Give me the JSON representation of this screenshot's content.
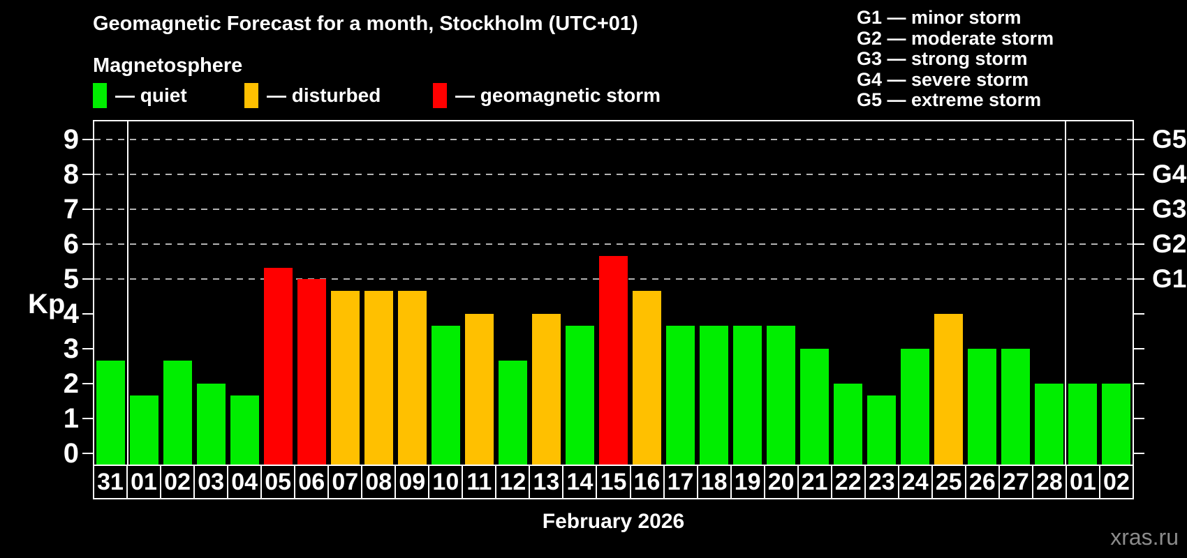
{
  "title": "Geomagnetic Forecast for a month, Stockholm (UTC+01)",
  "subtitle": "Magnetosphere",
  "legend": [
    {
      "label": "— quiet",
      "status": "quiet"
    },
    {
      "label": "— disturbed",
      "status": "disturbed"
    },
    {
      "label": "— geomagnetic storm",
      "status": "storm"
    }
  ],
  "storm_legend": [
    "G1 — minor storm",
    "G2 — moderate storm",
    "G3 — strong storm",
    "G4 — severe storm",
    "G5 — extreme storm"
  ],
  "watermark": "xras.ru",
  "chart_data": {
    "type": "bar",
    "title": "Geomagnetic Forecast for a month, Stockholm (UTC+01)",
    "xlabel": "February 2026",
    "ylabel": "Kp",
    "ylim": [
      -0.32,
      9.56
    ],
    "y_ticks": [
      0,
      1,
      2,
      3,
      4,
      5,
      6,
      7,
      8,
      9
    ],
    "gridlines": [
      5,
      6,
      7,
      8,
      9
    ],
    "grid_style": "dashed",
    "legend_position": "top",
    "right_axis_labels": [
      {
        "kp": 5,
        "label": "G1"
      },
      {
        "kp": 6,
        "label": "G2"
      },
      {
        "kp": 7,
        "label": "G3"
      },
      {
        "kp": 8,
        "label": "G4"
      },
      {
        "kp": 9,
        "label": "G5"
      }
    ],
    "status_colors": {
      "quiet": "#00ee00",
      "disturbed": "#ffc000",
      "storm": "#ff0000"
    },
    "bars": [
      {
        "day": "31",
        "kp": 2.67,
        "status": "quiet"
      },
      {
        "day": "01",
        "kp": 1.67,
        "status": "quiet"
      },
      {
        "day": "02",
        "kp": 2.67,
        "status": "quiet"
      },
      {
        "day": "03",
        "kp": 2.0,
        "status": "quiet"
      },
      {
        "day": "04",
        "kp": 1.67,
        "status": "quiet"
      },
      {
        "day": "05",
        "kp": 5.33,
        "status": "storm"
      },
      {
        "day": "06",
        "kp": 5.0,
        "status": "storm"
      },
      {
        "day": "07",
        "kp": 4.67,
        "status": "disturbed"
      },
      {
        "day": "08",
        "kp": 4.67,
        "status": "disturbed"
      },
      {
        "day": "09",
        "kp": 4.67,
        "status": "disturbed"
      },
      {
        "day": "10",
        "kp": 3.67,
        "status": "quiet"
      },
      {
        "day": "11",
        "kp": 4.0,
        "status": "disturbed"
      },
      {
        "day": "12",
        "kp": 2.67,
        "status": "quiet"
      },
      {
        "day": "13",
        "kp": 4.0,
        "status": "disturbed"
      },
      {
        "day": "14",
        "kp": 3.67,
        "status": "quiet"
      },
      {
        "day": "15",
        "kp": 5.67,
        "status": "storm"
      },
      {
        "day": "16",
        "kp": 4.67,
        "status": "disturbed"
      },
      {
        "day": "17",
        "kp": 3.67,
        "status": "quiet"
      },
      {
        "day": "18",
        "kp": 3.67,
        "status": "quiet"
      },
      {
        "day": "19",
        "kp": 3.67,
        "status": "quiet"
      },
      {
        "day": "20",
        "kp": 3.67,
        "status": "quiet"
      },
      {
        "day": "21",
        "kp": 3.0,
        "status": "quiet"
      },
      {
        "day": "22",
        "kp": 2.0,
        "status": "quiet"
      },
      {
        "day": "23",
        "kp": 1.67,
        "status": "quiet"
      },
      {
        "day": "24",
        "kp": 3.0,
        "status": "quiet"
      },
      {
        "day": "25",
        "kp": 4.0,
        "status": "disturbed"
      },
      {
        "day": "26",
        "kp": 3.0,
        "status": "quiet"
      },
      {
        "day": "27",
        "kp": 3.0,
        "status": "quiet"
      },
      {
        "day": "28",
        "kp": 2.0,
        "status": "quiet"
      },
      {
        "day": "01",
        "kp": 2.0,
        "status": "quiet"
      },
      {
        "day": "02",
        "kp": 2.0,
        "status": "quiet"
      }
    ],
    "separators_after_index": [
      0,
      28
    ]
  }
}
